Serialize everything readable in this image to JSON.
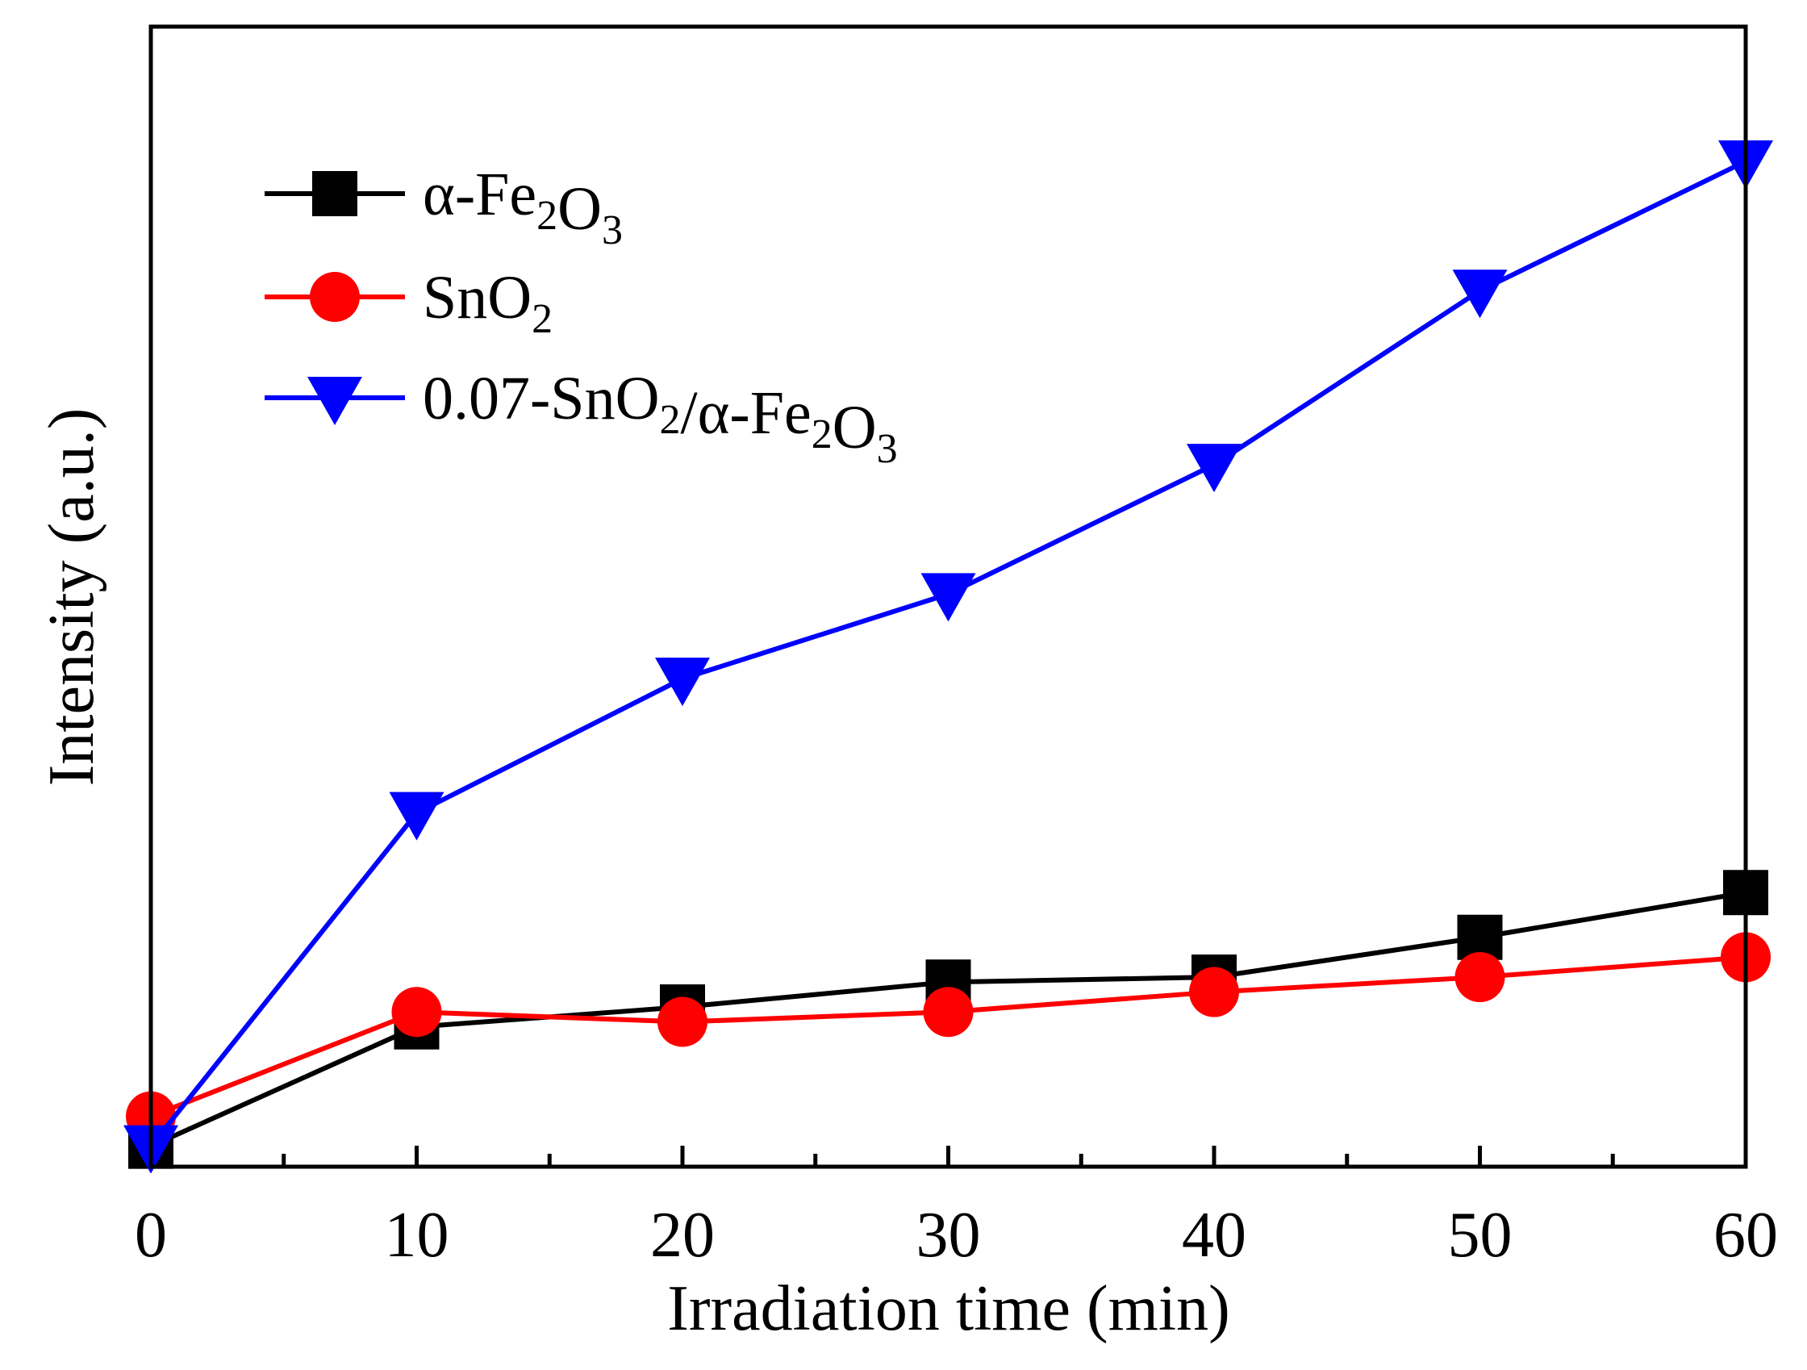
{
  "chart_data": {
    "type": "line",
    "xlabel": "Irradiation time (min)",
    "ylabel": "Intensity (a.u.)",
    "xlim": [
      0,
      60
    ],
    "ylim": [
      0,
      1.0
    ],
    "x_ticks": [
      0,
      10,
      20,
      30,
      40,
      50,
      60
    ],
    "x_tick_labels": [
      "0",
      "10",
      "20",
      "30",
      "40",
      "50",
      "60"
    ],
    "y_tick_labels_shown": false,
    "grid": false,
    "legend_position": "top-left",
    "series": [
      {
        "name": "α-Fe2O3",
        "legend_parts": [
          "α-Fe",
          "2",
          "O",
          "3"
        ],
        "color": "#000000",
        "marker": "square",
        "x": [
          0,
          10,
          20,
          30,
          40,
          50,
          60
        ],
        "values": [
          0.01,
          0.13,
          0.15,
          0.175,
          0.18,
          0.22,
          0.265
        ]
      },
      {
        "name": "SnO2",
        "legend_parts": [
          "SnO",
          "2"
        ],
        "color": "#ff0000",
        "marker": "circle",
        "x": [
          0,
          10,
          20,
          30,
          40,
          50,
          60
        ],
        "values": [
          0.04,
          0.145,
          0.135,
          0.145,
          0.165,
          0.18,
          0.2
        ]
      },
      {
        "name": "0.07-SnO2/α-Fe2O3",
        "legend_parts": [
          "0.07-SnO",
          "2",
          "/α-Fe",
          "2",
          "O",
          "3"
        ],
        "color": "#0000ff",
        "marker": "triangle-down",
        "x": [
          0,
          10,
          20,
          30,
          40,
          50,
          60
        ],
        "values": [
          0.01,
          0.345,
          0.48,
          0.565,
          0.695,
          0.87,
          1.0
        ]
      }
    ]
  }
}
